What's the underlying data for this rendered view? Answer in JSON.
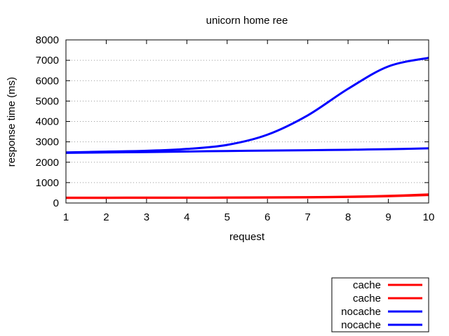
{
  "chart_data": {
    "type": "line",
    "title": "unicorn home ree",
    "xlabel": "request",
    "ylabel": "response time (ms)",
    "xlim": [
      1,
      10
    ],
    "ylim": [
      0,
      8000
    ],
    "x_ticks": [
      1,
      2,
      3,
      4,
      5,
      6,
      7,
      8,
      9,
      10
    ],
    "y_ticks": [
      0,
      1000,
      2000,
      3000,
      4000,
      5000,
      6000,
      7000,
      8000
    ],
    "grid": "horizontal dotted",
    "legend_position": "bottom-right, outside plot",
    "x": [
      1,
      2,
      3,
      4,
      5,
      6,
      7,
      8,
      9,
      10
    ],
    "series": [
      {
        "name": "cache",
        "color": "#ff0000",
        "values": [
          260,
          262,
          264,
          266,
          270,
          278,
          290,
          310,
          350,
          420
        ]
      },
      {
        "name": "cache",
        "color": "#ff0000",
        "values": [
          250,
          252,
          254,
          256,
          260,
          266,
          276,
          295,
          330,
          390
        ]
      },
      {
        "name": "nocache",
        "color": "#0000ff",
        "values": [
          2480,
          2520,
          2560,
          2650,
          2850,
          3350,
          4300,
          5600,
          6700,
          7120
        ]
      },
      {
        "name": "nocache",
        "color": "#0000ff",
        "values": [
          2460,
          2480,
          2500,
          2525,
          2550,
          2570,
          2590,
          2610,
          2640,
          2680
        ]
      }
    ]
  }
}
